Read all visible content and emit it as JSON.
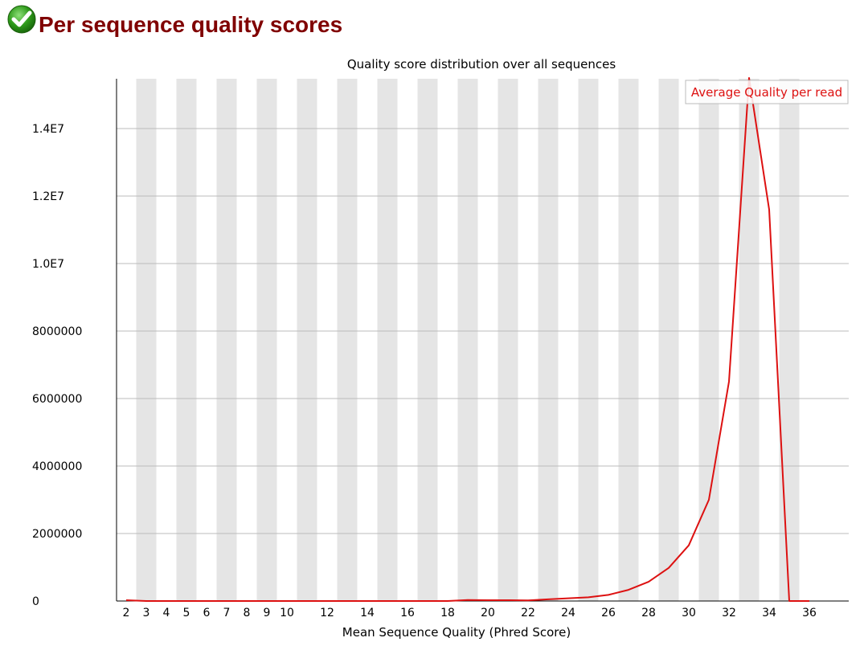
{
  "header": {
    "status_icon": "check-icon",
    "title": "Per sequence quality scores"
  },
  "chart_data": {
    "type": "line",
    "title": "Quality score distribution over all sequences",
    "xlabel": "Mean Sequence Quality (Phred Score)",
    "ylabel": "",
    "x": [
      2,
      3,
      4,
      5,
      6,
      7,
      8,
      9,
      10,
      11,
      12,
      13,
      14,
      15,
      16,
      17,
      18,
      19,
      20,
      21,
      22,
      23,
      24,
      25,
      26,
      27,
      28,
      29,
      30,
      31,
      32,
      33,
      34,
      35,
      36
    ],
    "x_tick_labels": [
      "2",
      "3",
      "4",
      "5",
      "6",
      "7",
      "8",
      "9",
      "10",
      "12",
      "14",
      "16",
      "18",
      "20",
      "22",
      "24",
      "26",
      "28",
      "30",
      "32",
      "34",
      "36"
    ],
    "x_tick_values": [
      2,
      3,
      4,
      5,
      6,
      7,
      8,
      9,
      10,
      12,
      14,
      16,
      18,
      20,
      22,
      24,
      26,
      28,
      30,
      32,
      34,
      36
    ],
    "series": [
      {
        "name": "Average Quality per read",
        "color": "#dd1111",
        "values": [
          25000,
          0,
          0,
          0,
          0,
          0,
          0,
          0,
          0,
          0,
          0,
          0,
          0,
          0,
          0,
          0,
          0,
          30000,
          25000,
          25000,
          20000,
          50000,
          80000,
          110000,
          180000,
          330000,
          570000,
          980000,
          1650000,
          3000000,
          6500000,
          15500000,
          11600000,
          0,
          0
        ]
      }
    ],
    "ylim": [
      0,
      15500000
    ],
    "y_ticks": [
      {
        "value": 0,
        "label": "0"
      },
      {
        "value": 2000000,
        "label": "2000000"
      },
      {
        "value": 4000000,
        "label": "4000000"
      },
      {
        "value": 6000000,
        "label": "6000000"
      },
      {
        "value": 8000000,
        "label": "8000000"
      },
      {
        "value": 10000000,
        "label": "1.0E7"
      },
      {
        "value": 12000000,
        "label": "1.2E7"
      },
      {
        "value": 14000000,
        "label": "1.4E7"
      }
    ],
    "grid": true,
    "alternating_bands": true,
    "legend_position": "top-right",
    "colors": {
      "band": "#e5e5e5",
      "grid": "#bbbbbb",
      "axis": "#000000",
      "line": "#dd1111"
    }
  }
}
